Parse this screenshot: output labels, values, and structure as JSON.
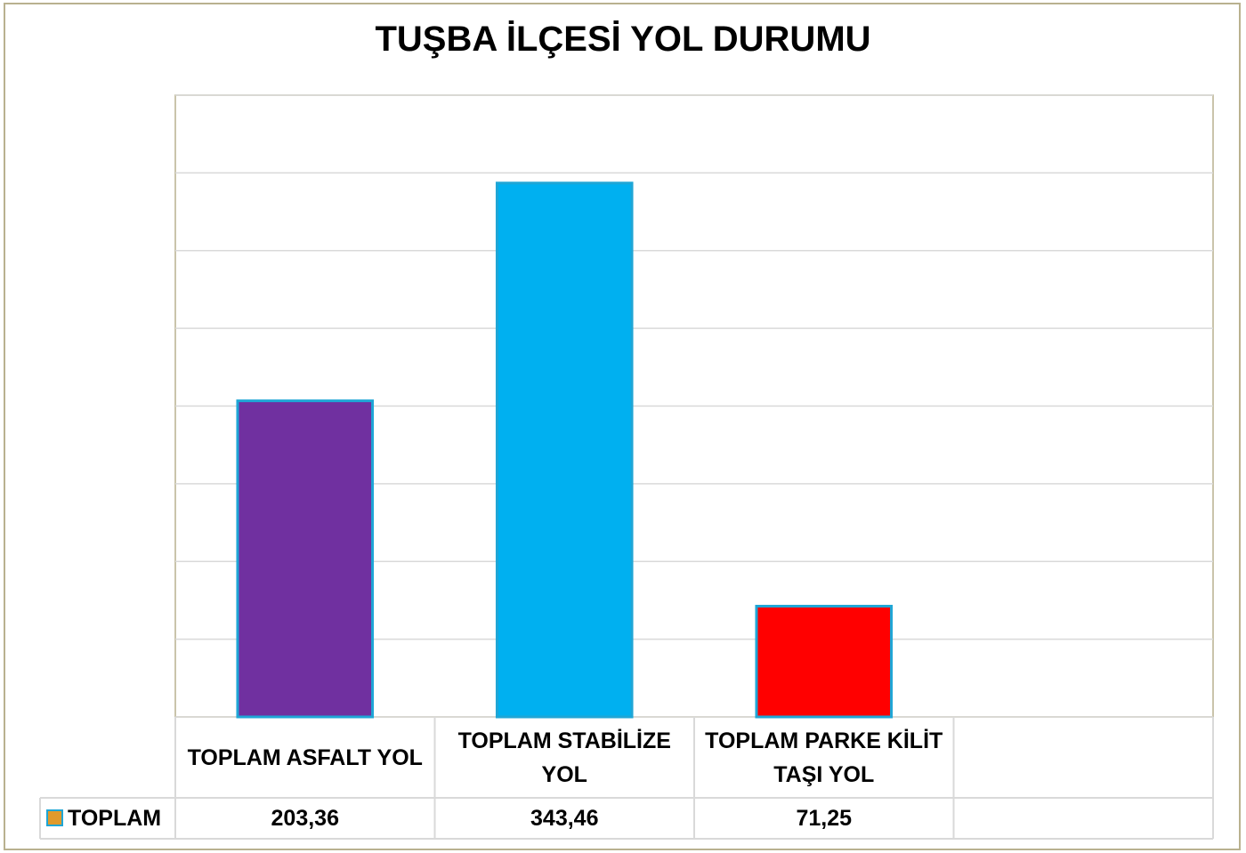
{
  "chart_data": {
    "type": "bar",
    "title": "TUŞBA İLÇESİ YOL DURUMU",
    "categories": [
      "TOPLAM ASFALT YOL",
      "TOPLAM STABİLİZE YOL",
      "TOPLAM PARKE KİLİT TAŞI YOL",
      null
    ],
    "series": [
      {
        "name": "TOPLAM",
        "color": "#e09a2c",
        "colors": [
          "#7030a0",
          "#00b0f0",
          "#ff0000",
          null
        ],
        "values": [
          203.36,
          343.46,
          71.25,
          null
        ],
        "value_labels": [
          "203,36",
          "343,46",
          "71,25",
          null
        ]
      }
    ],
    "ylim": [
      0,
      400
    ],
    "yticks": [
      0,
      50,
      100,
      150,
      200,
      250,
      300,
      350,
      400
    ],
    "grid": true,
    "data_table": true
  }
}
